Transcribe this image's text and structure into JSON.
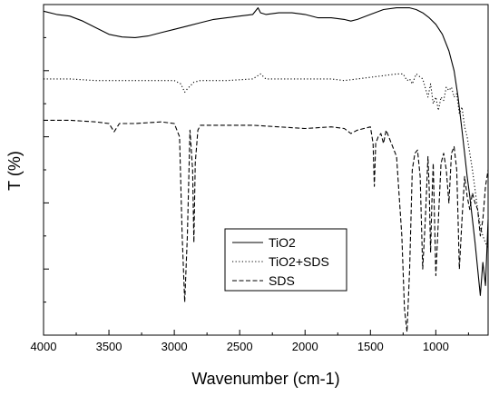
{
  "chart_data": {
    "type": "line",
    "xlabel": "Wavenumber (cm-1)",
    "ylabel": "T (%)",
    "xlim": [
      4000,
      600
    ],
    "x_reversed": true,
    "ylim": [
      0,
      100
    ],
    "y_ticks_labeled": false,
    "y_ticks": [
      20,
      40,
      60,
      80,
      100
    ],
    "x_ticks": [
      4000,
      3500,
      3000,
      2500,
      2000,
      1500,
      1000
    ],
    "grid": false,
    "legend": {
      "placement": "bottom-center",
      "entries": [
        "TiO2",
        "TiO2+SDS",
        "SDS"
      ]
    },
    "series": [
      {
        "name": "TiO2",
        "style": "solid",
        "x": [
          4000,
          3900,
          3800,
          3700,
          3600,
          3500,
          3400,
          3300,
          3200,
          3100,
          3000,
          2900,
          2800,
          2700,
          2600,
          2500,
          2400,
          2360,
          2340,
          2300,
          2200,
          2100,
          2000,
          1900,
          1800,
          1700,
          1650,
          1600,
          1500,
          1400,
          1300,
          1200,
          1150,
          1100,
          1050,
          1000,
          950,
          900,
          860,
          830,
          800,
          780,
          760,
          740,
          720,
          700,
          680,
          660,
          640,
          620,
          600
        ],
        "y": [
          98,
          97,
          96.5,
          95,
          93,
          91,
          90.2,
          90,
          90.5,
          91.5,
          92.5,
          93.5,
          94.5,
          95.5,
          96,
          96.5,
          97,
          99,
          97.5,
          97,
          97.5,
          97.5,
          97,
          96,
          96,
          95.5,
          95,
          95.5,
          97,
          98.5,
          99,
          99,
          98.5,
          97.5,
          96,
          94,
          91,
          86,
          80,
          72,
          62,
          55,
          48,
          42,
          35,
          28,
          20,
          12,
          22,
          15,
          35
        ]
      },
      {
        "name": "TiO2+SDS",
        "style": "dotted",
        "x": [
          4000,
          3800,
          3600,
          3400,
          3200,
          3000,
          2950,
          2920,
          2900,
          2850,
          2800,
          2600,
          2400,
          2340,
          2300,
          2000,
          1800,
          1700,
          1600,
          1500,
          1400,
          1300,
          1250,
          1220,
          1200,
          1180,
          1150,
          1100,
          1060,
          1040,
          1020,
          1000,
          980,
          960,
          940,
          920,
          900,
          880,
          860,
          840,
          820,
          800,
          780,
          760,
          740,
          720,
          700,
          680,
          660,
          640,
          620,
          600
        ],
        "y": [
          77.5,
          77.5,
          77,
          77,
          77,
          77,
          76,
          73.5,
          74.5,
          76.5,
          77,
          77,
          77.5,
          79,
          77.5,
          77.5,
          77.5,
          77,
          77.5,
          78,
          78.5,
          79,
          79,
          77,
          77.5,
          76,
          79,
          77.5,
          72,
          76,
          70,
          72,
          68,
          72,
          71,
          75,
          74,
          75,
          72,
          73,
          67,
          69,
          63,
          60,
          55,
          50,
          44,
          38,
          33,
          30,
          28,
          26
        ]
      },
      {
        "name": "SDS",
        "style": "dashed",
        "x": [
          4000,
          3800,
          3600,
          3500,
          3460,
          3420,
          3300,
          3100,
          3000,
          2960,
          2940,
          2920,
          2900,
          2880,
          2860,
          2850,
          2840,
          2820,
          2800,
          2600,
          2400,
          2200,
          2000,
          1800,
          1700,
          1650,
          1600,
          1500,
          1480,
          1470,
          1460,
          1440,
          1420,
          1400,
          1380,
          1360,
          1300,
          1260,
          1240,
          1220,
          1200,
          1180,
          1160,
          1140,
          1120,
          1100,
          1080,
          1060,
          1050,
          1040,
          1030,
          1020,
          1000,
          980,
          960,
          940,
          920,
          900,
          880,
          860,
          840,
          830,
          820,
          800,
          780,
          760,
          740,
          720,
          700,
          680,
          660,
          640,
          620,
          600
        ],
        "y": [
          65,
          65,
          64.5,
          64,
          61.5,
          64,
          64,
          64.5,
          64,
          60,
          30,
          10,
          30,
          62,
          50,
          28,
          52,
          62,
          63.5,
          63.5,
          63.5,
          63,
          62.5,
          63,
          62.5,
          61,
          62,
          63,
          58,
          45,
          58,
          60,
          61,
          58,
          62,
          60,
          54,
          30,
          8,
          1,
          20,
          50,
          55,
          56,
          48,
          20,
          35,
          54,
          44,
          25,
          40,
          52,
          18,
          35,
          52,
          55,
          50,
          40,
          55,
          57,
          50,
          35,
          20,
          35,
          48,
          42,
          38,
          43,
          40,
          38,
          30,
          35,
          45,
          50
        ]
      }
    ]
  }
}
